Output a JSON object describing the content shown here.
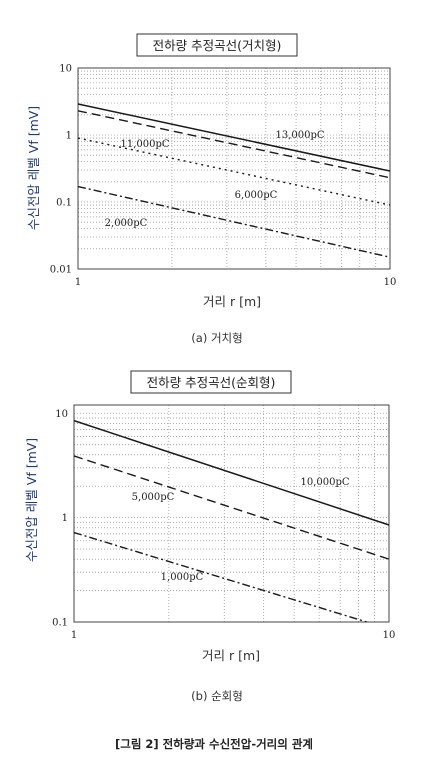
{
  "figure_caption": "[그림 2] 전하량과 수신전압-거리의 관계",
  "chart_data": [
    {
      "type": "line",
      "title": "전하량 추정곡선(거치형)",
      "subcaption": "(a) 거치형",
      "xlabel": "거리 r [m]",
      "ylabel": "수신전압 레벨 Vf [mV]",
      "x_scale": "log",
      "y_scale": "log",
      "xlim": [
        1,
        10
      ],
      "ylim": [
        0.01,
        10
      ],
      "x_ticks": [
        "1",
        "10"
      ],
      "y_ticks": [
        "0.01",
        "0.1",
        "1",
        "10"
      ],
      "grid": true,
      "series": [
        {
          "name": "13,000pC",
          "style": "solid",
          "x": [
            1,
            10
          ],
          "y": [
            2.9,
            0.29
          ]
        },
        {
          "name": "11,000pC",
          "style": "dashed",
          "x": [
            1,
            10
          ],
          "y": [
            2.3,
            0.23
          ]
        },
        {
          "name": "6,000pC",
          "style": "dotted",
          "x": [
            1,
            10
          ],
          "y": [
            0.9,
            0.09
          ]
        },
        {
          "name": "2,000pC",
          "style": "dashdot",
          "x": [
            1,
            10
          ],
          "y": [
            0.17,
            0.015
          ]
        }
      ]
    },
    {
      "type": "line",
      "title": "전하량 추정곡선(순회형)",
      "subcaption": "(b) 순회형",
      "xlabel": "거리 r [m]",
      "ylabel": "수신전압 레벨 Vf [mV]",
      "x_scale": "log",
      "y_scale": "log",
      "xlim": [
        1,
        10
      ],
      "ylim": [
        0.1,
        12
      ],
      "x_ticks": [
        "1",
        "10"
      ],
      "y_ticks": [
        "0.1",
        "1",
        "10"
      ],
      "grid": true,
      "series": [
        {
          "name": "10,000pC",
          "style": "solid",
          "x": [
            1,
            10
          ],
          "y": [
            8.5,
            0.85
          ]
        },
        {
          "name": "5,000pC",
          "style": "dashed",
          "x": [
            1,
            10
          ],
          "y": [
            3.9,
            0.4
          ]
        },
        {
          "name": "1,000pC",
          "style": "dashdot",
          "x": [
            1,
            8.5
          ],
          "y": [
            0.72,
            0.1
          ]
        }
      ]
    }
  ]
}
